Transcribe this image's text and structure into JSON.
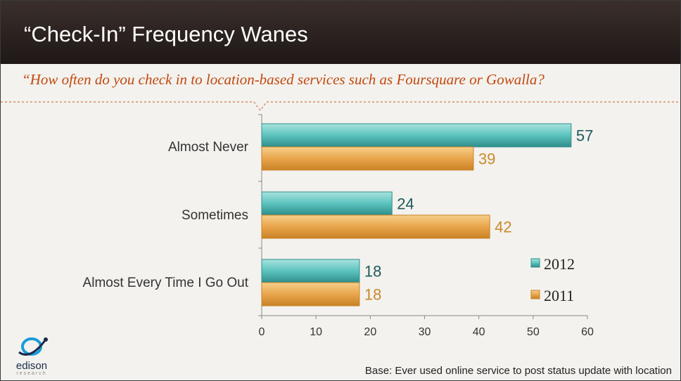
{
  "slide": {
    "title": "“Check-In” Frequency Wanes",
    "question": "“How often do you check in to location-based services such as Foursquare or Gowalla?",
    "base_note": "Base: Ever used online service to post status update with location",
    "logo": {
      "word": "edison",
      "sub": "research"
    }
  },
  "colors": {
    "series_2012": "#4bbcb8",
    "series_2011": "#e8a64a",
    "label_2012": "#1e5b5a",
    "label_2011": "#c98a2a",
    "accent": "#c2470f"
  },
  "chart_data": {
    "type": "bar",
    "orientation": "horizontal",
    "categories": [
      "Almost Never",
      "Sometimes",
      "Almost Every Time I Go Out"
    ],
    "series": [
      {
        "name": "2012",
        "values": [
          57,
          24,
          18
        ]
      },
      {
        "name": "2011",
        "values": [
          39,
          42,
          18
        ]
      }
    ],
    "xlim": [
      0,
      60
    ],
    "xticks": [
      "0",
      "10",
      "20",
      "30",
      "40",
      "50",
      "60"
    ],
    "grid": false,
    "legend": "bottom-right"
  }
}
